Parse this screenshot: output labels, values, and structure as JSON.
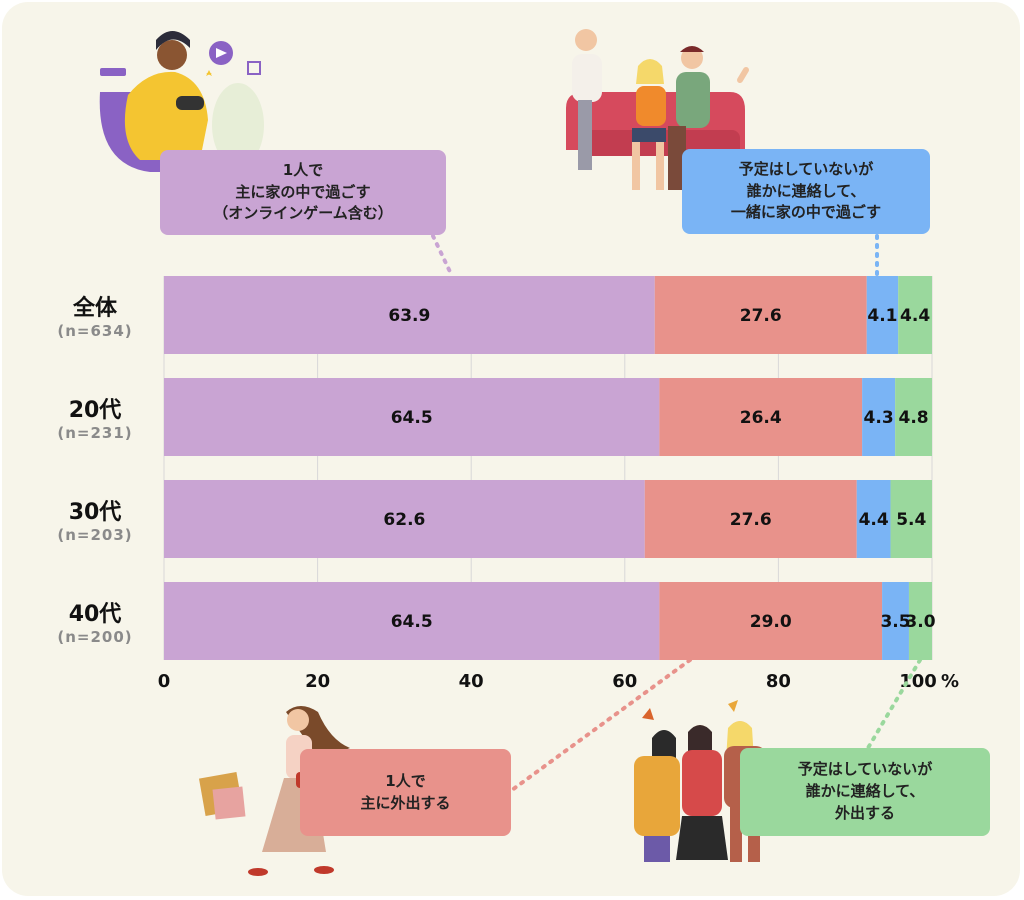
{
  "chart_data": {
    "type": "bar",
    "orientation": "horizontal",
    "stacked": true,
    "categories": [
      "全体",
      "20代",
      "30代",
      "40代"
    ],
    "category_n": [
      "(n=634)",
      "(n=231)",
      "(n=203)",
      "(n=200)"
    ],
    "series": [
      {
        "name": "1人で\n主に家の中で過ごす\n(オンラインゲーム含む)",
        "color": "#c9a4d3",
        "values": [
          63.9,
          64.5,
          62.6,
          64.5
        ]
      },
      {
        "name": "1人で\n主に外出する",
        "color": "#e8928b",
        "values": [
          27.6,
          26.4,
          27.6,
          29.0
        ]
      },
      {
        "name": "予定はしていないが\n誰かに連絡して、\n一緒に家の中で過ごす",
        "color": "#7ab4f5",
        "values": [
          4.1,
          4.3,
          4.4,
          3.5
        ]
      },
      {
        "name": "予定はしていないが\n誰かに連絡して、\n外出する",
        "color": "#9ad89d",
        "values": [
          4.4,
          4.8,
          5.4,
          3.0
        ]
      }
    ],
    "value_labels": [
      [
        "63.9",
        "27.6",
        "4.1",
        "4.4"
      ],
      [
        "64.5",
        "26.4",
        "4.3",
        "4.8"
      ],
      [
        "62.6",
        "27.6",
        "4.4",
        "5.4"
      ],
      [
        "64.5",
        "29.0",
        "3.5",
        "3.0"
      ]
    ],
    "xlim": [
      0,
      100
    ],
    "xticks": [
      "0",
      "20",
      "40",
      "60",
      "80",
      "100"
    ],
    "x_unit": "%",
    "grid": true,
    "legend_placement": "callouts"
  },
  "callouts": {
    "solo_home": [
      "1人で",
      "主に家の中で過ごす",
      "（オンラインゲーム含む）"
    ],
    "group_home": [
      "予定はしていないが",
      "誰かに連絡して、",
      "一緒に家の中で過ごす"
    ],
    "solo_out": [
      "1人で",
      "主に外出する"
    ],
    "group_out": [
      "予定はしていないが",
      "誰かに連絡して、",
      "外出する"
    ]
  },
  "rows": [
    {
      "label": "全体",
      "n": "(n=634)"
    },
    {
      "label": "20代",
      "n": "(n=231)"
    },
    {
      "label": "30代",
      "n": "(n=203)"
    },
    {
      "label": "40代",
      "n": "(n=200)"
    }
  ],
  "colors": {
    "background": "#f7f5ea",
    "solo_home": "#c9a4d3",
    "solo_out": "#e8928b",
    "group_home": "#7ab4f5",
    "group_out": "#9ad89d"
  }
}
